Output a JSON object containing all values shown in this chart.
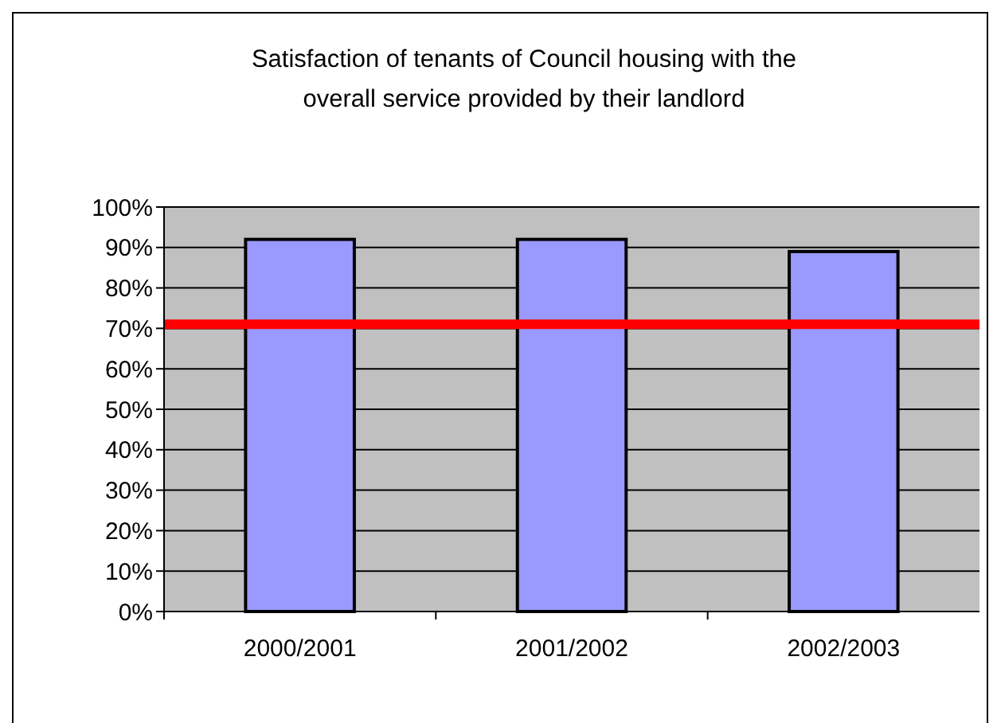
{
  "chart_data": {
    "type": "bar",
    "title": "Satisfaction of tenants of Council housing with the overall service provided by their landlord",
    "categories": [
      "2000/2001",
      "2001/2002",
      "2002/2003"
    ],
    "values": [
      92,
      92,
      89
    ],
    "color": "#9999ff",
    "ylim": [
      0,
      100
    ],
    "yticks": [
      {
        "value": 0,
        "label": "0%"
      },
      {
        "value": 10,
        "label": "10%"
      },
      {
        "value": 20,
        "label": "20%"
      },
      {
        "value": 30,
        "label": "30%"
      },
      {
        "value": 40,
        "label": "40%"
      },
      {
        "value": 50,
        "label": "50%"
      },
      {
        "value": 60,
        "label": "60%"
      },
      {
        "value": 70,
        "label": "70%"
      },
      {
        "value": 80,
        "label": "80%"
      },
      {
        "value": 90,
        "label": "90%"
      },
      {
        "value": 100,
        "label": "100%"
      }
    ],
    "grid": "y",
    "ref_lines": [
      {
        "axis": "y",
        "value": 71,
        "color": "#ff0000"
      }
    ]
  }
}
